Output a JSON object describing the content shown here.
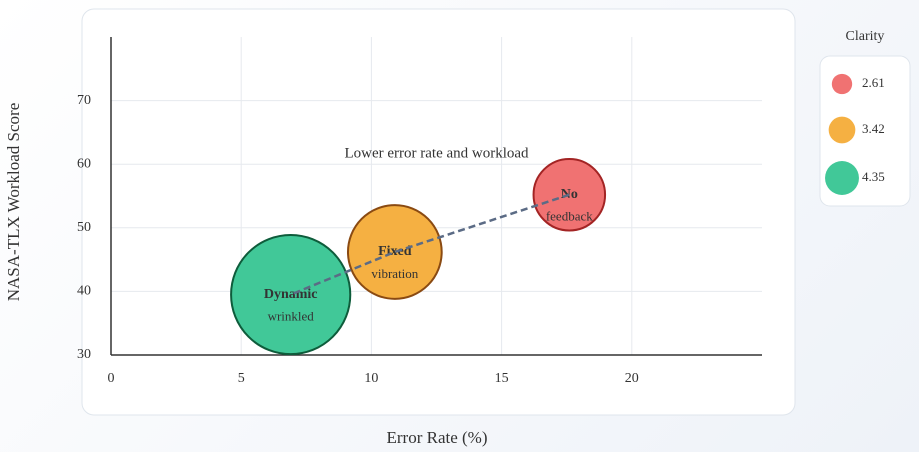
{
  "chart_data": {
    "type": "bubble",
    "x_label": "Error Rate (%)",
    "y_label": "NASA-TLX Workload Score",
    "annotation": "Lower error rate and workload",
    "size_label": "Clarity",
    "xlim": [
      0,
      25
    ],
    "xticks": [
      0,
      5,
      10,
      15,
      20
    ],
    "ylim": [
      30,
      80
    ],
    "yticks": [
      30,
      40,
      50,
      60,
      70
    ],
    "grid": true,
    "trend_line": true,
    "trend_color": "#5b6b85",
    "legend": "right",
    "points": [
      {
        "label": [
          "No",
          "feedback"
        ],
        "x": 17.6,
        "y": 55.2,
        "size": 2.61,
        "color": "#f07272",
        "edge": "#a32424"
      },
      {
        "label": [
          "Fixed",
          "vibration"
        ],
        "x": 10.9,
        "y": 46.2,
        "size": 3.42,
        "color": "#f5b042",
        "edge": "#8a4a12"
      },
      {
        "label": [
          "Dynamic",
          "wrinkled"
        ],
        "x": 6.9,
        "y": 39.5,
        "size": 4.35,
        "color": "#41c898",
        "edge": "#0e5c3b"
      }
    ]
  }
}
